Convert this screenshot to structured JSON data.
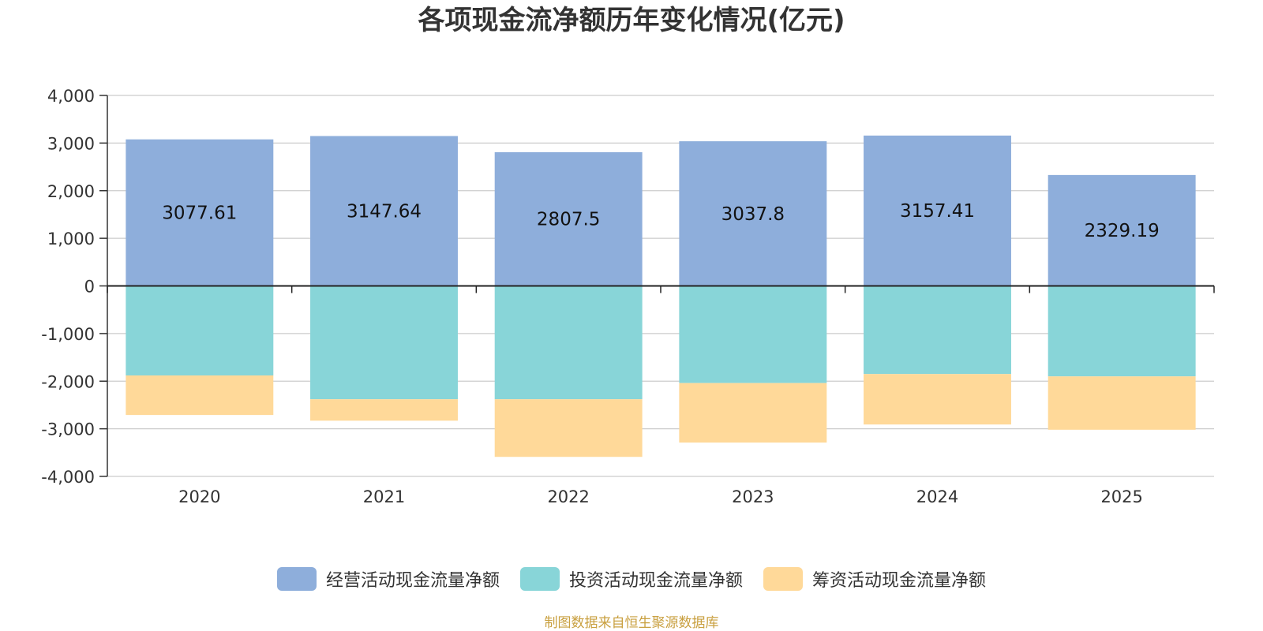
{
  "chart_data": {
    "type": "bar",
    "title": "各项现金流净额历年变化情况(亿元)",
    "categories": [
      "2020",
      "2021",
      "2022",
      "2023",
      "2024",
      "2025"
    ],
    "stacked": true,
    "ylim": [
      -4000,
      4000
    ],
    "yticks": [
      4000,
      3000,
      2000,
      1000,
      0,
      -1000,
      -2000,
      -3000,
      -4000
    ],
    "ytick_labels": [
      "4,000",
      "3,000",
      "2,000",
      "1,000",
      "0",
      "-1,000",
      "-2,000",
      "-3,000",
      "-4,000"
    ],
    "grid": true,
    "legend_position": "bottom",
    "series": [
      {
        "name": "经营活动现金流量净额",
        "color": "#8eaedb",
        "values": [
          3077.61,
          3147.64,
          2807.5,
          3037.8,
          3157.41,
          2329.19
        ],
        "data_labels": [
          "3077.61",
          "3147.64",
          "2807.5",
          "3037.8",
          "3157.41",
          "2329.19"
        ]
      },
      {
        "name": "投资活动现金流量净额",
        "color": "#88d5d8",
        "values": [
          -1880,
          -2380,
          -2380,
          -2040,
          -1850,
          -1900
        ]
      },
      {
        "name": "筹资活动现金流量净额",
        "color": "#ffd999",
        "values": [
          -830,
          -450,
          -1210,
          -1250,
          -1060,
          -1120
        ]
      }
    ]
  },
  "source_note": "制图数据来自恒生聚源数据库"
}
